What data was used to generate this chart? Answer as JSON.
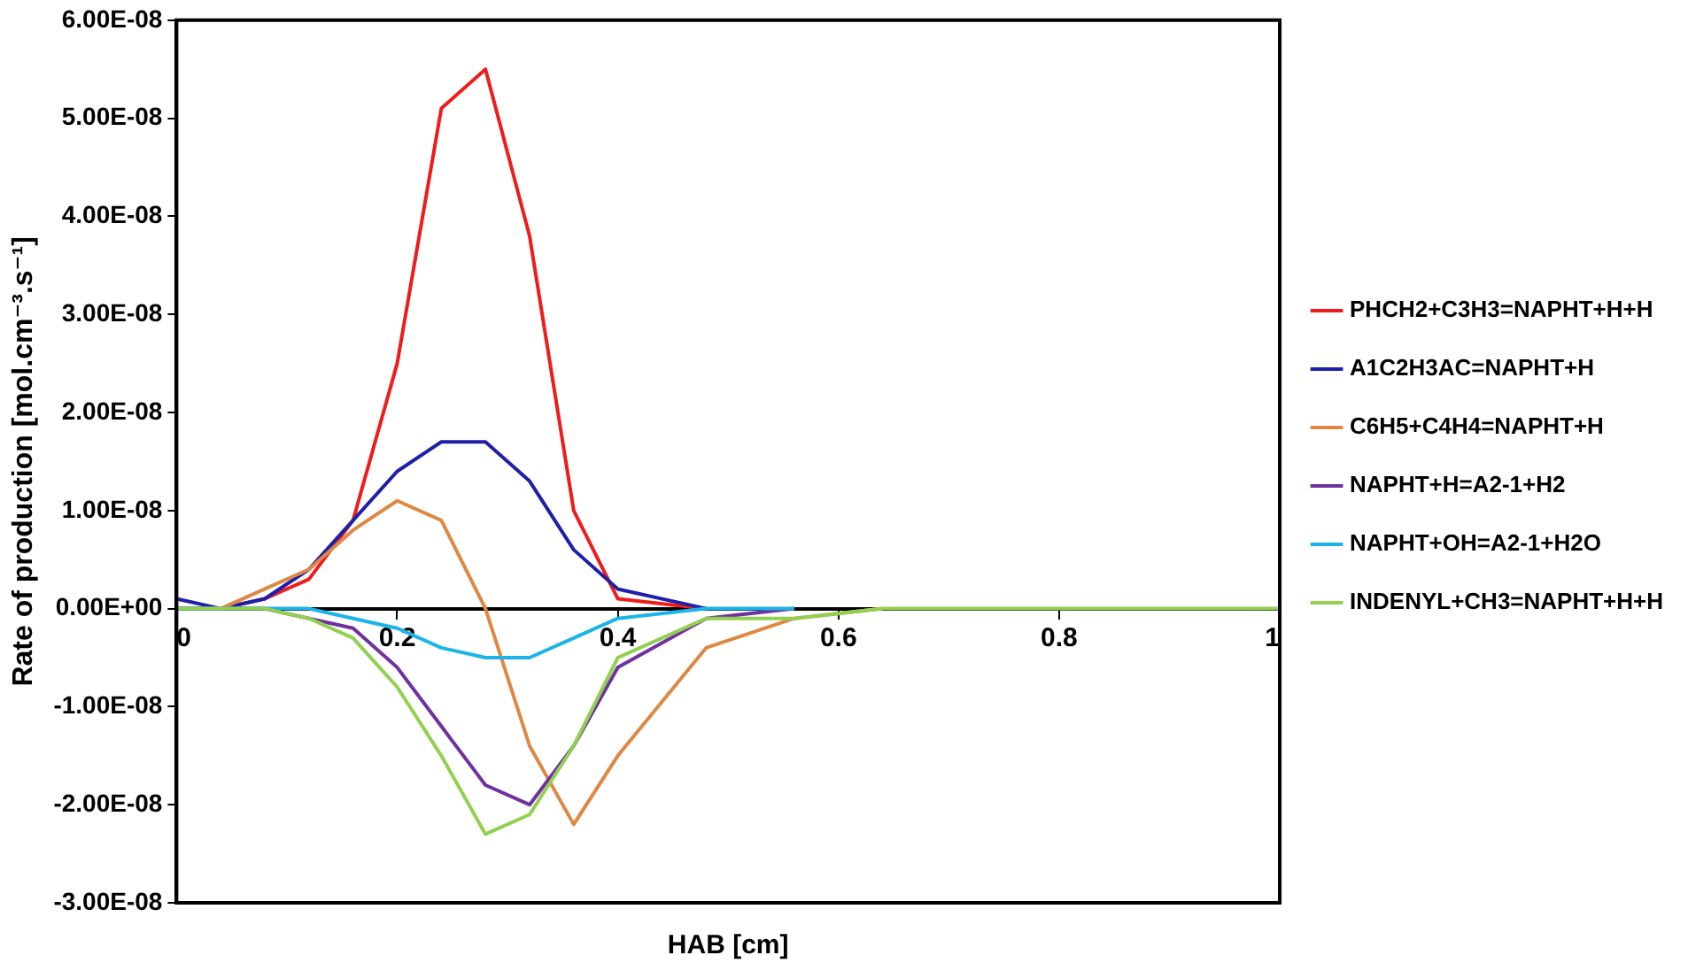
{
  "chart_data": {
    "type": "line",
    "xlabel": "HAB [cm]",
    "ylabel": "Rate of production [mol.cm⁻³.s⁻¹]",
    "x": [
      0,
      0.04,
      0.08,
      0.12,
      0.16,
      0.2,
      0.24,
      0.28,
      0.32,
      0.36,
      0.4,
      0.48,
      0.56,
      0.64,
      1
    ],
    "series": [
      {
        "name": "PHCH2+C3H3=NAPHT+H+H",
        "color": "#ee1c1c",
        "values": [
          0,
          0,
          1e-09,
          3e-09,
          9e-09,
          2.5e-08,
          5.1e-08,
          5.5e-08,
          3.8e-08,
          1e-08,
          1e-09,
          0,
          null,
          null,
          null
        ]
      },
      {
        "name": "A1C2H3AC=NAPHT+H",
        "color": "#1f1fa8",
        "values": [
          1e-09,
          0,
          1e-09,
          4e-09,
          9e-09,
          1.4e-08,
          1.7e-08,
          1.7e-08,
          1.3e-08,
          6e-09,
          2e-09,
          0,
          null,
          null,
          null
        ]
      },
      {
        "name": "C6H5+C4H4=NAPHT+H",
        "color": "#dd8844",
        "values": [
          0,
          0,
          2e-09,
          4e-09,
          8e-09,
          1.1e-08,
          9e-09,
          0,
          -1.4e-08,
          -2.2e-08,
          -1.5e-08,
          -4e-09,
          -1e-09,
          0,
          null
        ]
      },
      {
        "name": "NAPHT+H=A2-1+H2",
        "color": "#7030a0",
        "values": [
          0,
          0,
          0,
          -1e-09,
          -2e-09,
          -6e-09,
          -1.2e-08,
          -1.8e-08,
          -2e-08,
          -1.4e-08,
          -6e-09,
          -1e-09,
          0,
          null,
          null
        ]
      },
      {
        "name": "NAPHT+OH=A2-1+H2O",
        "color": "#1cb4e8",
        "values": [
          0,
          0,
          0,
          0,
          -1e-09,
          -2e-09,
          -4e-09,
          -5e-09,
          -5e-09,
          -3e-09,
          -1e-09,
          0,
          0,
          null,
          null
        ]
      },
      {
        "name": "INDENYL+CH3=NAPHT+H+H",
        "color": "#92d050",
        "values": [
          0,
          0,
          0,
          -1e-09,
          -3e-09,
          -8e-09,
          -1.5e-08,
          -2.3e-08,
          -2.1e-08,
          -1.4e-08,
          -5e-09,
          -1e-09,
          -1e-09,
          0,
          0
        ]
      }
    ],
    "xlim": [
      0,
      1
    ],
    "xticks": [
      0,
      0.2,
      0.4,
      0.6,
      0.8,
      1
    ],
    "ylim": [
      -3e-08,
      6e-08
    ],
    "yticks": [
      {
        "value": -3e-08,
        "label": "-3.00E-08"
      },
      {
        "value": -2e-08,
        "label": "-2.00E-08"
      },
      {
        "value": -1e-08,
        "label": "-1.00E-08"
      },
      {
        "value": 0,
        "label": "0.00E+00"
      },
      {
        "value": 1e-08,
        "label": "1.00E-08"
      },
      {
        "value": 2e-08,
        "label": "2.00E-08"
      },
      {
        "value": 3e-08,
        "label": "3.00E-08"
      },
      {
        "value": 4e-08,
        "label": "4.00E-08"
      },
      {
        "value": 5e-08,
        "label": "5.00E-08"
      },
      {
        "value": 6e-08,
        "label": "6.00E-08"
      }
    ],
    "grid": false,
    "legend": "right",
    "marker": "none",
    "line_style": "solid"
  }
}
